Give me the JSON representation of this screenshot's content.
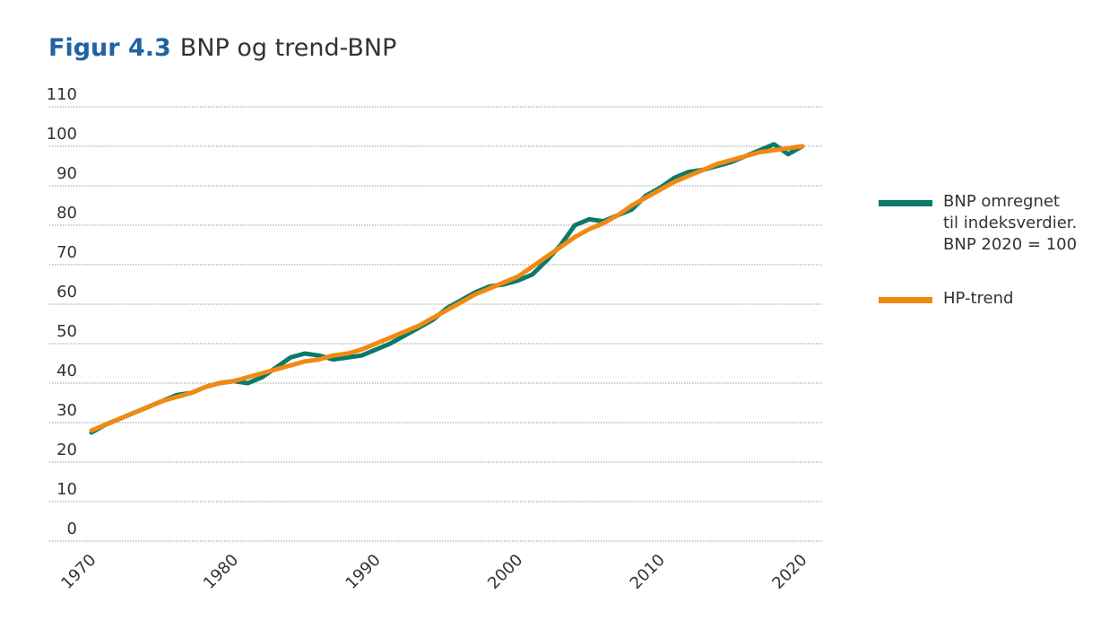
{
  "title": {
    "figure": "Figur 4.3",
    "text": "BNP og trend-BNP"
  },
  "colors": {
    "bnp": "#0a7a6a",
    "trend": "#f08a13",
    "title_accent": "#1f63a3",
    "grid": "#9a9a9a",
    "text": "#333333"
  },
  "chart_data": {
    "type": "line",
    "title": "Figur 4.3 BNP og trend-BNP",
    "xlabel": "",
    "ylabel": "",
    "xlim": [
      1970,
      2020
    ],
    "ylim": [
      0,
      110
    ],
    "yticks": [
      0,
      10,
      20,
      30,
      40,
      50,
      60,
      70,
      80,
      90,
      100,
      110
    ],
    "xticks": [
      1970,
      1980,
      1990,
      2000,
      2010,
      2020
    ],
    "grid": true,
    "legend_position": "right",
    "series": [
      {
        "name": "BNP omregnet til indeksverdier. BNP 2020 = 100",
        "x": [
          1970,
          1971,
          1972,
          1973,
          1974,
          1975,
          1976,
          1977,
          1978,
          1979,
          1980,
          1981,
          1982,
          1983,
          1984,
          1985,
          1986,
          1987,
          1988,
          1989,
          1990,
          1991,
          1992,
          1993,
          1994,
          1995,
          1996,
          1997,
          1998,
          1999,
          2000,
          2001,
          2002,
          2003,
          2004,
          2005,
          2006,
          2007,
          2008,
          2009,
          2010,
          2011,
          2012,
          2013,
          2014,
          2015,
          2016,
          2017,
          2018,
          2019,
          2020
        ],
        "values": [
          27.5,
          29.5,
          31,
          32.5,
          34,
          35.5,
          37,
          37.5,
          39,
          40,
          40.5,
          40,
          41.5,
          44,
          46.5,
          47.5,
          47,
          46,
          46.5,
          47,
          48.5,
          50,
          52,
          54,
          56,
          59,
          61,
          63,
          64.5,
          65,
          66,
          67.5,
          71,
          75,
          80,
          81.5,
          81,
          82.5,
          84,
          87.5,
          89.5,
          92,
          93.5,
          94,
          95,
          96,
          97.5,
          99,
          100.5,
          98,
          100
        ]
      },
      {
        "name": "HP-trend",
        "x": [
          1970,
          1971,
          1972,
          1973,
          1974,
          1975,
          1976,
          1977,
          1978,
          1979,
          1980,
          1981,
          1982,
          1983,
          1984,
          1985,
          1986,
          1987,
          1988,
          1989,
          1990,
          1991,
          1992,
          1993,
          1994,
          1995,
          1996,
          1997,
          1998,
          1999,
          2000,
          2001,
          2002,
          2003,
          2004,
          2005,
          2006,
          2007,
          2008,
          2009,
          2010,
          2011,
          2012,
          2013,
          2014,
          2015,
          2016,
          2017,
          2018,
          2019,
          2020
        ],
        "values": [
          28,
          29.5,
          31,
          32.5,
          34,
          35.5,
          36.5,
          37.5,
          39,
          40,
          40.5,
          41.5,
          42.5,
          43.5,
          44.5,
          45.5,
          46,
          47,
          47.5,
          48.5,
          50,
          51.5,
          53,
          54.5,
          56.5,
          58.5,
          60.5,
          62.5,
          64,
          65.5,
          67,
          69.5,
          72,
          74.5,
          77,
          79,
          80.5,
          82.5,
          85,
          87,
          89,
          91,
          92.5,
          94,
          95.5,
          96.5,
          97.5,
          98.5,
          99,
          99.5,
          100
        ]
      }
    ]
  },
  "legend": {
    "items": [
      {
        "lines": [
          "BNP omregnet",
          "til indeksverdier.",
          "BNP 2020 = 100"
        ]
      },
      {
        "lines": [
          "HP-trend"
        ]
      }
    ]
  }
}
